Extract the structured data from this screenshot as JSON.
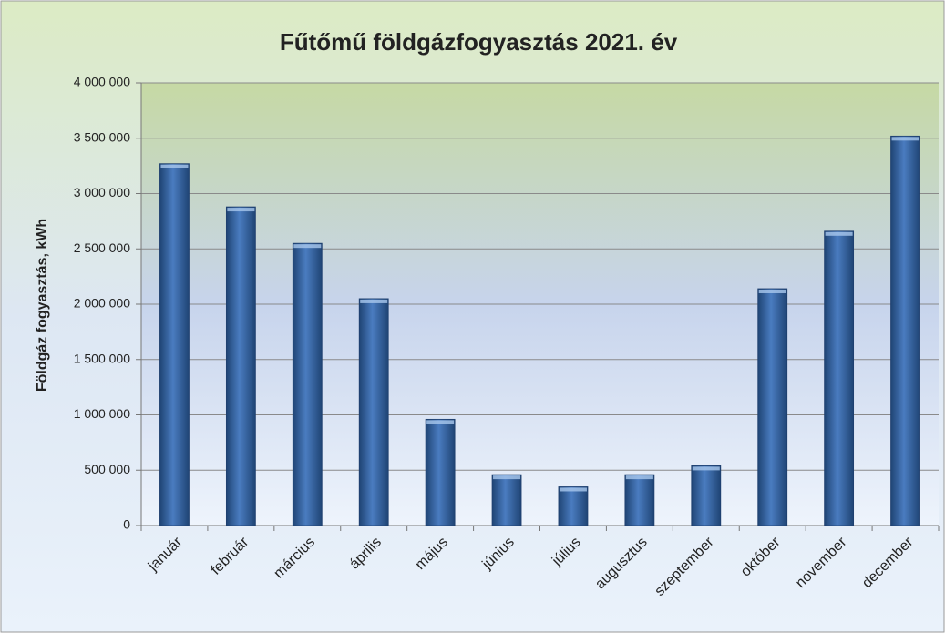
{
  "chart_data": {
    "type": "bar",
    "title": "Fűtőmű földgázfogyasztás 2021. év",
    "y_label": "Földgáz fogyasztás, kWh",
    "categories": [
      "január",
      "február",
      "március",
      "április",
      "május",
      "június",
      "július",
      "augusztus",
      "szeptember",
      "október",
      "november",
      "december"
    ],
    "values": [
      3270000,
      2880000,
      2550000,
      2050000,
      960000,
      460000,
      350000,
      460000,
      540000,
      2140000,
      2660000,
      3520000
    ],
    "color": "#4a7cc0",
    "ylim": [
      0,
      4000000
    ],
    "yticks": [
      0,
      {
        "value": 500000,
        "label": "500 000"
      },
      {
        "value": 1000000,
        "label": "1 000 000"
      },
      {
        "value": 1500000,
        "label": "1 500 000"
      },
      {
        "value": 2000000,
        "label": "2 000 000"
      },
      {
        "value": 2500000,
        "label": "2 500 000"
      },
      {
        "value": 3000000,
        "label": "3 000 000"
      },
      {
        "value": 3500000,
        "label": "3 500 000"
      },
      {
        "value": 4000000,
        "label": "4 000 000"
      }
    ],
    "grid": true
  }
}
